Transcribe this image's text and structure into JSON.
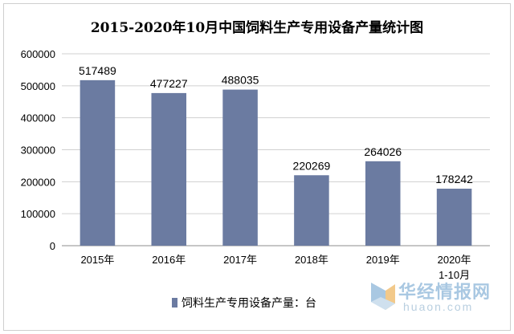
{
  "chart_data": {
    "type": "bar",
    "title": "2015-2020年10月中国饲料生产专用设备产量统计图",
    "categories": [
      "2015年",
      "2016年",
      "2017年",
      "2018年",
      "2019年",
      "2020年\n1-10月"
    ],
    "series": [
      {
        "name": "饲料生产专用设备产量：台",
        "values": [
          517489,
          477227,
          488035,
          220269,
          264026,
          178242
        ]
      }
    ],
    "data_labels": [
      "517489",
      "477227",
      "488035",
      "220269",
      "264026",
      "178242"
    ],
    "y_ticks": [
      "0",
      "100000",
      "200000",
      "300000",
      "400000",
      "500000",
      "600000"
    ],
    "ylim": [
      0,
      600000
    ],
    "grid": true,
    "legend_position": "bottom",
    "bar_color": "#6b7ba1"
  },
  "watermark": {
    "brand": "华经情报网",
    "url": "huaon.com"
  }
}
